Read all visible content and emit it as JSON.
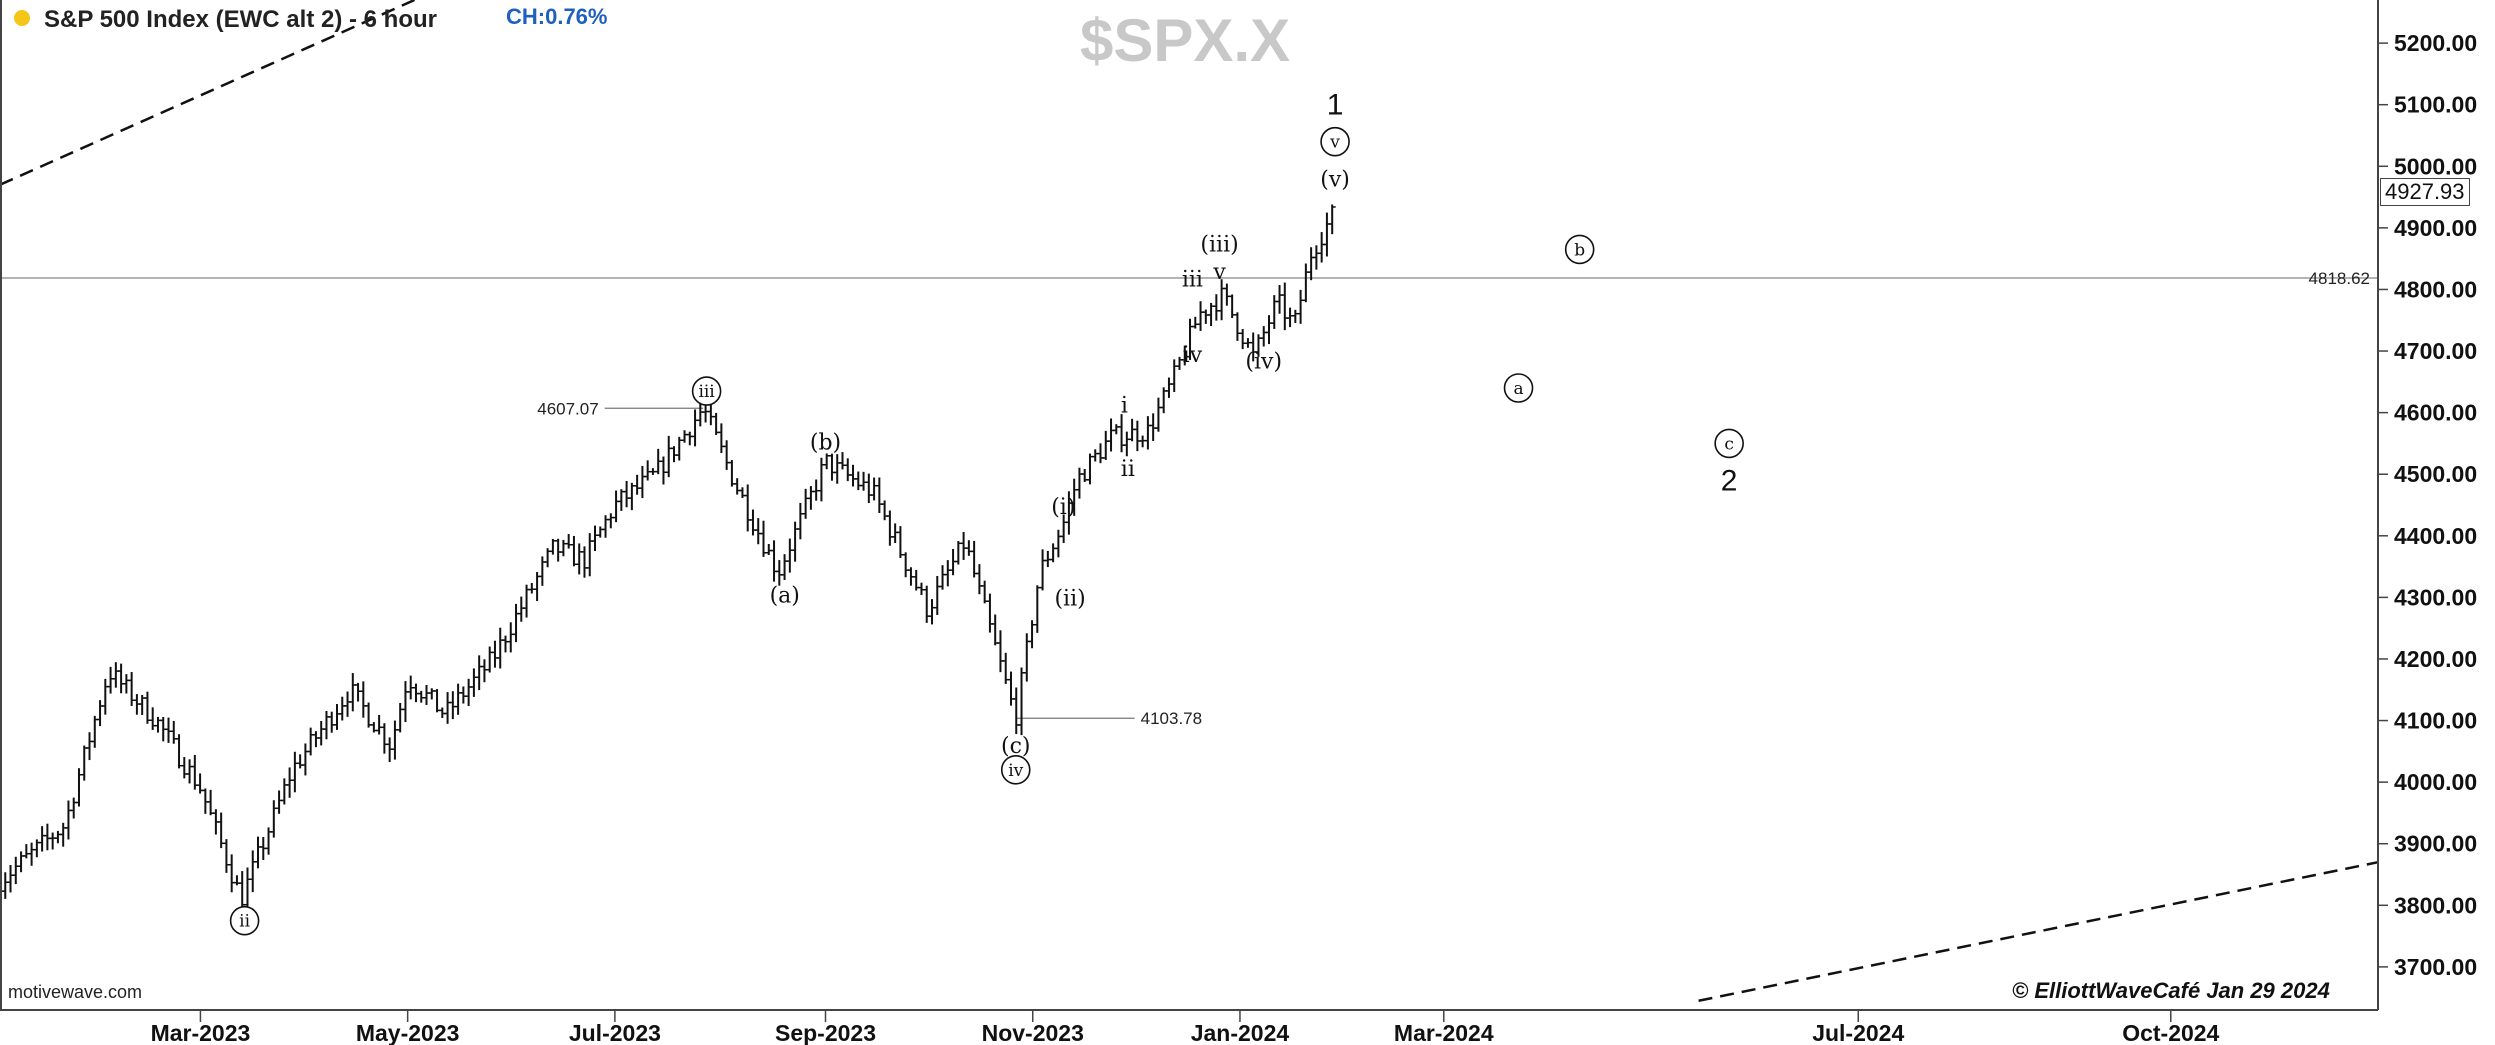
{
  "header": {
    "title": "S&P 500 Index (EWC alt 2) - 6 hour",
    "change_label": "CH:0.76%",
    "watermark": "$SPX.X",
    "credit": "motivewave.com",
    "copyright": "© ElliottWaveCafé Jan 29 2024",
    "status_dot_color": "#f5c518"
  },
  "chart_data": {
    "type": "bar",
    "style": "ohlc",
    "x_start": "2023-01-01",
    "x_end": "2024-12-01",
    "ylim": [
      3630,
      5270
    ],
    "grid": false,
    "y_ticks": [
      "3700.00",
      "3800.00",
      "3900.00",
      "4000.00",
      "4100.00",
      "4200.00",
      "4300.00",
      "4400.00",
      "4500.00",
      "4600.00",
      "4700.00",
      "4800.00",
      "4900.00",
      "5000.00",
      "5100.00",
      "5200.00"
    ],
    "x_ticks": [
      {
        "label": "Mar-2023",
        "date": "2023-03-01"
      },
      {
        "label": "May-2023",
        "date": "2023-05-01"
      },
      {
        "label": "Jul-2023",
        "date": "2023-07-01"
      },
      {
        "label": "Sep-2023",
        "date": "2023-09-01"
      },
      {
        "label": "Nov-2023",
        "date": "2023-11-01"
      },
      {
        "label": "Jan-2024",
        "date": "2024-01-01"
      },
      {
        "label": "Mar-2024",
        "date": "2024-03-01"
      },
      {
        "label": "Jul-2024",
        "date": "2024-07-01"
      },
      {
        "label": "Oct-2024",
        "date": "2024-10-01"
      }
    ],
    "price_path": [
      {
        "date": "2023-01-01",
        "price": 3840
      },
      {
        "date": "2023-01-20",
        "price": 3930
      },
      {
        "date": "2023-02-02",
        "price": 4180
      },
      {
        "date": "2023-02-16",
        "price": 4100
      },
      {
        "date": "2023-03-01",
        "price": 3990
      },
      {
        "date": "2023-03-13",
        "price": 3810
      },
      {
        "date": "2023-03-28",
        "price": 4020
      },
      {
        "date": "2023-04-14",
        "price": 4150
      },
      {
        "date": "2023-04-26",
        "price": 4060
      },
      {
        "date": "2023-05-01",
        "price": 4170
      },
      {
        "date": "2023-05-12",
        "price": 4110
      },
      {
        "date": "2023-05-26",
        "price": 4200
      },
      {
        "date": "2023-06-13",
        "price": 4380
      },
      {
        "date": "2023-06-22",
        "price": 4360
      },
      {
        "date": "2023-07-01",
        "price": 4450
      },
      {
        "date": "2023-07-13",
        "price": 4500
      },
      {
        "date": "2023-07-27",
        "price": 4607
      },
      {
        "date": "2023-08-05",
        "price": 4490
      },
      {
        "date": "2023-08-18",
        "price": 4340
      },
      {
        "date": "2023-09-01",
        "price": 4520
      },
      {
        "date": "2023-09-15",
        "price": 4470
      },
      {
        "date": "2023-10-01",
        "price": 4280
      },
      {
        "date": "2023-10-12",
        "price": 4390
      },
      {
        "date": "2023-10-27",
        "price": 4104
      },
      {
        "date": "2023-11-03",
        "price": 4340
      },
      {
        "date": "2023-11-10",
        "price": 4420
      },
      {
        "date": "2023-11-14",
        "price": 4490
      },
      {
        "date": "2023-11-24",
        "price": 4560
      },
      {
        "date": "2023-12-05",
        "price": 4570
      },
      {
        "date": "2023-12-12",
        "price": 4650
      },
      {
        "date": "2023-12-20",
        "price": 4760
      },
      {
        "date": "2023-12-27",
        "price": 4790
      },
      {
        "date": "2024-01-05",
        "price": 4690
      },
      {
        "date": "2024-01-12",
        "price": 4780
      },
      {
        "date": "2024-01-17",
        "price": 4740
      },
      {
        "date": "2024-01-22",
        "price": 4860
      },
      {
        "date": "2024-01-29",
        "price": 4928
      }
    ],
    "last_price": "4927.93",
    "horizontal_line": {
      "value": 4818.62,
      "label": "4818.62"
    },
    "price_labels": [
      {
        "label": "4607.07",
        "date": "2023-07-27",
        "value": 4607.07,
        "line_from": "2023-06-28"
      },
      {
        "label": "4103.78",
        "date": "2023-10-27",
        "value": 4103.78,
        "line_to": "2023-12-01"
      }
    ],
    "trendlines": [
      {
        "from": {
          "date": "2023-01-01",
          "price": 4970
        },
        "to": {
          "date": "2023-05-03",
          "price": 5270
        }
      },
      {
        "from": {
          "date": "2024-05-15",
          "price": 3645
        },
        "to": {
          "date": "2024-12-01",
          "price": 3870
        }
      }
    ],
    "wave_labels": [
      {
        "text": "ii",
        "date": "2023-03-14",
        "price": 3775,
        "style": "circle"
      },
      {
        "text": "iii",
        "date": "2023-07-28",
        "price": 4635,
        "style": "circle"
      },
      {
        "text": "(a)",
        "date": "2023-08-20",
        "price": 4305,
        "style": "paren"
      },
      {
        "text": "(b)",
        "date": "2023-09-01",
        "price": 4553,
        "style": "paren"
      },
      {
        "text": "(c)",
        "date": "2023-10-27",
        "price": 4060,
        "style": "paren"
      },
      {
        "text": "iv",
        "date": "2023-10-27",
        "price": 4020,
        "style": "circle"
      },
      {
        "text": "(i)",
        "date": "2023-11-10",
        "price": 4448,
        "style": "paren"
      },
      {
        "text": "(ii)",
        "date": "2023-11-12",
        "price": 4300,
        "style": "paren"
      },
      {
        "text": "i",
        "date": "2023-11-28",
        "price": 4613,
        "style": "plain"
      },
      {
        "text": "ii",
        "date": "2023-11-29",
        "price": 4510,
        "style": "plain"
      },
      {
        "text": "iii",
        "date": "2023-12-18",
        "price": 4818,
        "style": "plain"
      },
      {
        "text": "iv",
        "date": "2023-12-18",
        "price": 4695,
        "style": "plain"
      },
      {
        "text": "v",
        "date": "2023-12-26",
        "price": 4830,
        "style": "plain"
      },
      {
        "text": "(iii)",
        "date": "2023-12-26",
        "price": 4875,
        "style": "paren"
      },
      {
        "text": "(iv)",
        "date": "2024-01-08",
        "price": 4685,
        "style": "paren"
      },
      {
        "text": "(v)",
        "date": "2024-01-29",
        "price": 4980,
        "style": "paren"
      },
      {
        "text": "v",
        "date": "2024-01-29",
        "price": 5040,
        "style": "circle"
      },
      {
        "text": "1",
        "date": "2024-01-29",
        "price": 5100,
        "style": "big"
      },
      {
        "text": "a",
        "date": "2024-03-23",
        "price": 4640,
        "style": "circle"
      },
      {
        "text": "b",
        "date": "2024-04-10",
        "price": 4865,
        "style": "circle"
      },
      {
        "text": "c",
        "date": "2024-05-24",
        "price": 4550,
        "style": "circle"
      },
      {
        "text": "2",
        "date": "2024-05-24",
        "price": 4490,
        "style": "big"
      }
    ]
  }
}
